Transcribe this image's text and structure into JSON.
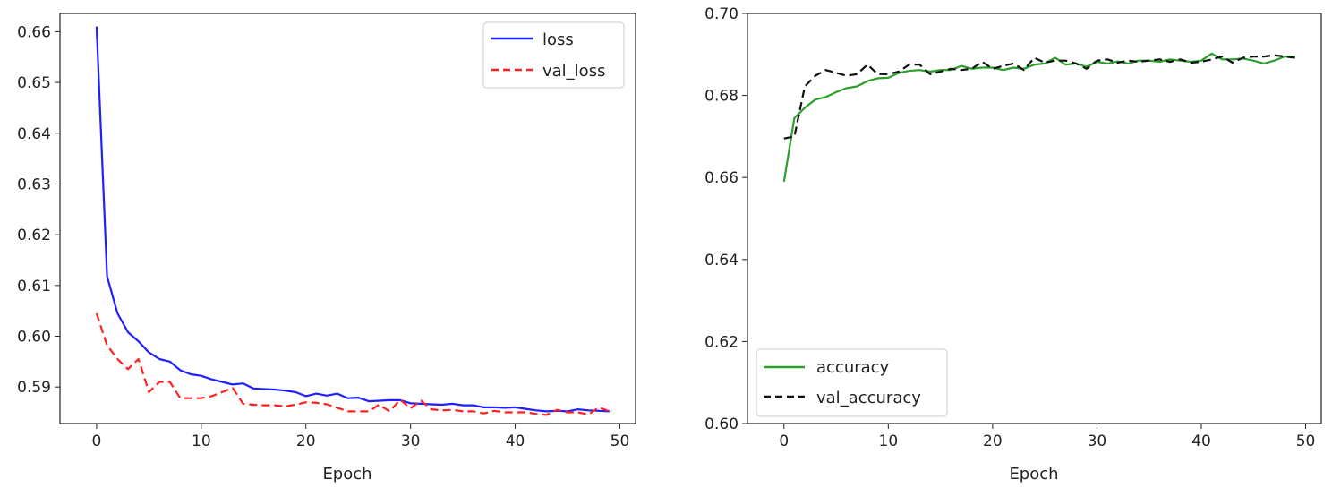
{
  "chart_data": [
    {
      "type": "line",
      "title": "",
      "xlabel": "Epoch",
      "ylabel": "",
      "xlim": [
        -3.5,
        51.5
      ],
      "ylim": [
        0.5828,
        0.6636
      ],
      "xticks": [
        0,
        10,
        20,
        30,
        40,
        50
      ],
      "yticks": [
        0.59,
        0.6,
        0.61,
        0.62,
        0.63,
        0.64,
        0.65,
        0.66
      ],
      "ytick_labels": [
        "0.59",
        "0.60",
        "0.61",
        "0.62",
        "0.63",
        "0.64",
        "0.65",
        "0.66"
      ],
      "legend": "top-right",
      "series": [
        {
          "name": "loss",
          "color": "#1f1fff",
          "style": "solid",
          "x": [
            0,
            1,
            2,
            3,
            4,
            5,
            6,
            7,
            8,
            9,
            10,
            11,
            12,
            13,
            14,
            15,
            16,
            17,
            18,
            19,
            20,
            21,
            22,
            23,
            24,
            25,
            26,
            27,
            28,
            29,
            30,
            31,
            32,
            33,
            34,
            35,
            36,
            37,
            38,
            39,
            40,
            41,
            42,
            43,
            44,
            45,
            46,
            47,
            48,
            49
          ],
          "values": [
            0.661,
            0.6118,
            0.6045,
            0.6008,
            0.599,
            0.5968,
            0.5955,
            0.595,
            0.5933,
            0.5925,
            0.5922,
            0.5915,
            0.591,
            0.5905,
            0.5907,
            0.5897,
            0.5896,
            0.5895,
            0.5893,
            0.589,
            0.5882,
            0.5887,
            0.5883,
            0.5887,
            0.5878,
            0.5879,
            0.5872,
            0.5873,
            0.5874,
            0.5874,
            0.5868,
            0.5867,
            0.5866,
            0.5865,
            0.5867,
            0.5864,
            0.5864,
            0.586,
            0.586,
            0.5859,
            0.586,
            0.5857,
            0.5854,
            0.5852,
            0.5853,
            0.5852,
            0.5856,
            0.5854,
            0.5853,
            0.5852
          ]
        },
        {
          "name": "val_loss",
          "color": "#ff2020",
          "style": "dashed",
          "x": [
            0,
            1,
            2,
            3,
            4,
            5,
            6,
            7,
            8,
            9,
            10,
            11,
            12,
            13,
            14,
            15,
            16,
            17,
            18,
            19,
            20,
            21,
            22,
            23,
            24,
            25,
            26,
            27,
            28,
            29,
            30,
            31,
            32,
            33,
            34,
            35,
            36,
            37,
            38,
            39,
            40,
            41,
            42,
            43,
            44,
            45,
            46,
            47,
            48,
            49
          ],
          "values": [
            0.6045,
            0.5982,
            0.5955,
            0.5935,
            0.5955,
            0.589,
            0.591,
            0.591,
            0.5878,
            0.5878,
            0.5878,
            0.5882,
            0.589,
            0.5898,
            0.5867,
            0.5865,
            0.5864,
            0.5864,
            0.5862,
            0.5865,
            0.587,
            0.5869,
            0.5866,
            0.5859,
            0.5852,
            0.5852,
            0.5852,
            0.5865,
            0.5852,
            0.5875,
            0.5858,
            0.5873,
            0.5856,
            0.5854,
            0.5855,
            0.5852,
            0.5852,
            0.5848,
            0.5853,
            0.585,
            0.585,
            0.585,
            0.5847,
            0.5845,
            0.5855,
            0.585,
            0.585,
            0.5846,
            0.586,
            0.5852
          ]
        }
      ]
    },
    {
      "type": "line",
      "title": "",
      "xlabel": "Epoch",
      "ylabel": "",
      "xlim": [
        -3.5,
        51.5
      ],
      "ylim": [
        0.6,
        0.7
      ],
      "xticks": [
        0,
        10,
        20,
        30,
        40,
        50
      ],
      "yticks": [
        0.6,
        0.62,
        0.64,
        0.66,
        0.68,
        0.7
      ],
      "ytick_labels": [
        "0.60",
        "0.62",
        "0.64",
        "0.66",
        "0.68",
        "0.70"
      ],
      "legend": "lower-left",
      "series": [
        {
          "name": "accuracy",
          "color": "#2ca02c",
          "style": "solid",
          "x": [
            0,
            1,
            2,
            3,
            4,
            5,
            6,
            7,
            8,
            9,
            10,
            11,
            12,
            13,
            14,
            15,
            16,
            17,
            18,
            19,
            20,
            21,
            22,
            23,
            24,
            25,
            26,
            27,
            28,
            29,
            30,
            31,
            32,
            33,
            34,
            35,
            36,
            37,
            38,
            39,
            40,
            41,
            42,
            43,
            44,
            45,
            46,
            47,
            48,
            49
          ],
          "values": [
            0.659,
            0.6745,
            0.677,
            0.679,
            0.6796,
            0.6808,
            0.6818,
            0.6822,
            0.6835,
            0.6842,
            0.6843,
            0.6855,
            0.686,
            0.6862,
            0.6858,
            0.6862,
            0.6862,
            0.6872,
            0.6865,
            0.6868,
            0.6868,
            0.6862,
            0.6868,
            0.6865,
            0.6875,
            0.6878,
            0.6892,
            0.6875,
            0.6878,
            0.687,
            0.6882,
            0.6878,
            0.6883,
            0.6878,
            0.6885,
            0.6885,
            0.6882,
            0.6888,
            0.6885,
            0.6882,
            0.6885,
            0.6902,
            0.6888,
            0.6888,
            0.689,
            0.6885,
            0.6878,
            0.6885,
            0.6895,
            0.6895
          ]
        },
        {
          "name": "val_accuracy",
          "color": "#111111",
          "style": "dashed",
          "x": [
            0,
            1,
            2,
            3,
            4,
            5,
            6,
            7,
            8,
            9,
            10,
            11,
            12,
            13,
            14,
            15,
            16,
            17,
            18,
            19,
            20,
            21,
            22,
            23,
            24,
            25,
            26,
            27,
            28,
            29,
            30,
            31,
            32,
            33,
            34,
            35,
            36,
            37,
            38,
            39,
            40,
            41,
            42,
            43,
            44,
            45,
            46,
            47,
            48,
            49
          ],
          "values": [
            0.6695,
            0.67,
            0.6822,
            0.6848,
            0.6862,
            0.6855,
            0.6848,
            0.6852,
            0.6875,
            0.6852,
            0.6852,
            0.6858,
            0.6875,
            0.6875,
            0.6852,
            0.6858,
            0.6865,
            0.6862,
            0.6865,
            0.6882,
            0.6865,
            0.6872,
            0.6878,
            0.6862,
            0.6892,
            0.688,
            0.6885,
            0.6885,
            0.6878,
            0.6865,
            0.6885,
            0.6888,
            0.688,
            0.6885,
            0.6882,
            0.6885,
            0.6888,
            0.6882,
            0.6888,
            0.688,
            0.6882,
            0.6888,
            0.6895,
            0.688,
            0.6892,
            0.6895,
            0.6895,
            0.6898,
            0.6895,
            0.6892
          ]
        }
      ]
    }
  ]
}
